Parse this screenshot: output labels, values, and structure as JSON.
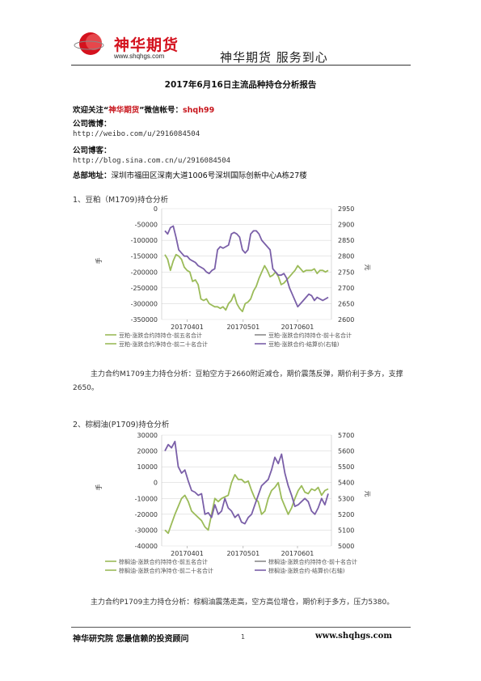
{
  "header": {
    "logo_text": "神华期货",
    "logo_url": "www.shqhgs.com",
    "slogan": "神华期货 服务到心"
  },
  "report": {
    "title": "2017年6月16日主流品种持仓分析报告",
    "follow_label": "欢迎关注“",
    "follow_brand": "神华期货",
    "follow_mid": "”微信帐号：",
    "wechat_id": "shqh99",
    "weibo_label": "公司微博：",
    "weibo_url": "http://weibo.com/u/2916084504",
    "blog_label": "公司博客：",
    "blog_url": "http://blog.sina.com.cn/u/2916084504",
    "address_label": "总部地址：",
    "address": "深圳市福田区深南大道1006号深圳国际创新中心A栋27楼"
  },
  "sections": [
    {
      "heading": "1、豆粕（M1709)持仓分析",
      "analysis": "主力合约M1709主力持仓分析：豆粕空方于2660附近减仓，期价震荡反弹，期价利于多方，支撑2650。"
    },
    {
      "heading": "2、棕榈油(P1709)持仓分析",
      "analysis": "主力合约P1709主力持仓分析：棕榈油震荡走高，空方高位增仓，期价利于多方，压力5380。"
    }
  ],
  "chart_data": [
    {
      "type": "line",
      "left_axis": {
        "label": "手",
        "ticks": [
          "0",
          "-50000",
          "-100000",
          "-150000",
          "-200000",
          "-250000",
          "-300000",
          "-350000"
        ],
        "range": [
          -350000,
          0
        ]
      },
      "right_axis": {
        "label": "元",
        "ticks": [
          "2950",
          "2900",
          "2850",
          "2800",
          "2750",
          "2700",
          "2650",
          "2600"
        ],
        "range": [
          2600,
          2950
        ]
      },
      "x_ticks": [
        "20170401",
        "20170501",
        "20170601"
      ],
      "legend": [
        "豆粕-涨跌合约持持仓-前五名合计",
        "豆粕-涨跌合约持持仓-前十名合计",
        "豆粕-涨跌合约净持仓-前二十名合计",
        "豆粕-涨跌合约-结算价(右轴)"
      ],
      "series": [
        {
          "color": "#9bbb59",
          "axis": "left",
          "values": [
            -145000,
            -160000,
            -195000,
            -165000,
            -145000,
            -150000,
            -160000,
            -185000,
            -195000,
            -200000,
            -230000,
            -225000,
            -240000,
            -285000,
            -290000,
            -285000,
            -300000,
            -305000,
            -310000,
            -310000,
            -315000,
            -310000,
            -320000,
            -300000,
            -290000,
            -270000,
            -300000,
            -315000,
            -325000,
            -300000,
            -295000,
            -285000,
            -260000,
            -245000,
            -220000,
            -200000,
            -180000,
            -195000,
            -215000,
            -210000,
            -200000,
            -215000,
            -240000,
            -235000,
            -225000,
            -215000,
            -205000,
            -195000,
            -180000,
            -190000,
            -200000,
            -195000,
            -195000,
            -195000,
            -190000,
            -205000,
            -195000,
            -195000,
            -200000,
            -195000
          ]
        },
        {
          "color": "#7a5fa8",
          "axis": "right",
          "values": [
            2880,
            2870,
            2890,
            2895,
            2860,
            2820,
            2810,
            2800,
            2800,
            2790,
            2785,
            2780,
            2770,
            2765,
            2760,
            2750,
            2745,
            2755,
            2760,
            2820,
            2830,
            2825,
            2830,
            2835,
            2870,
            2875,
            2870,
            2860,
            2820,
            2810,
            2820,
            2870,
            2880,
            2880,
            2870,
            2850,
            2840,
            2830,
            2820,
            2760,
            2750,
            2740,
            2740,
            2745,
            2730,
            2700,
            2680,
            2660,
            2640,
            2650,
            2660,
            2670,
            2680,
            2675,
            2660,
            2670,
            2665,
            2660,
            2665,
            2670
          ]
        }
      ]
    },
    {
      "type": "line",
      "left_axis": {
        "label": "手",
        "ticks": [
          "30000",
          "20000",
          "10000",
          "0",
          "-10000",
          "-20000",
          "-30000",
          "-40000"
        ],
        "range": [
          -40000,
          30000
        ]
      },
      "right_axis": {
        "label": "元",
        "ticks": [
          "5700",
          "5600",
          "5500",
          "5400",
          "5300",
          "5200",
          "5100",
          "5000"
        ],
        "range": [
          5000,
          5700
        ]
      },
      "x_ticks": [
        "20170401",
        "20170501",
        "20170601"
      ],
      "legend": [
        "棕榈油-涨跌合约持持仓-前五名合计",
        "棕榈油-涨跌合约持持仓-前十名合计",
        "棕榈油-涨跌合约净持仓-前二十名合计",
        "棕榈油-涨跌合约-结算价(右轴)"
      ],
      "series": [
        {
          "color": "#9bbb59",
          "axis": "left",
          "values": [
            -30000,
            -32000,
            -26000,
            -20000,
            -15000,
            -10000,
            -8000,
            -12000,
            -18000,
            -20000,
            -22000,
            -24000,
            -28000,
            -30000,
            -20000,
            -10000,
            -12000,
            -10000,
            -9000,
            -8000,
            0,
            5000,
            2000,
            2000,
            0,
            1000,
            -5000,
            -10000,
            -12000,
            -20000,
            -18000,
            -10000,
            -5000,
            -3000,
            0,
            -10000,
            -15000,
            -20000,
            -16000,
            -10000,
            -5000,
            -2000,
            -6000,
            -7000,
            -4000,
            -5000,
            -3000,
            -8000,
            -5000,
            -4000
          ]
        },
        {
          "color": "#7a5fa8",
          "axis": "right",
          "values": [
            5600,
            5640,
            5620,
            5660,
            5500,
            5460,
            5480,
            5410,
            5350,
            5340,
            5320,
            5330,
            5200,
            5210,
            5180,
            5260,
            5200,
            5220,
            5300,
            5240,
            5220,
            5180,
            5200,
            5150,
            5140,
            5180,
            5200,
            5260,
            5320,
            5380,
            5400,
            5420,
            5480,
            5560,
            5520,
            5580,
            5460,
            5380,
            5320,
            5250,
            5260,
            5280,
            5300,
            5280,
            5220,
            5200,
            5240,
            5300,
            5260,
            5330
          ]
        }
      ]
    }
  ],
  "footer": {
    "left": "神华研究院 您最信赖的投资顾问",
    "page": "1",
    "right": "www.shqhgs.com"
  },
  "colors": {
    "brand_red": "#d4121e",
    "series_green": "#9bbb59",
    "series_purple": "#7a5fa8",
    "grid": "#d9d9d9"
  }
}
